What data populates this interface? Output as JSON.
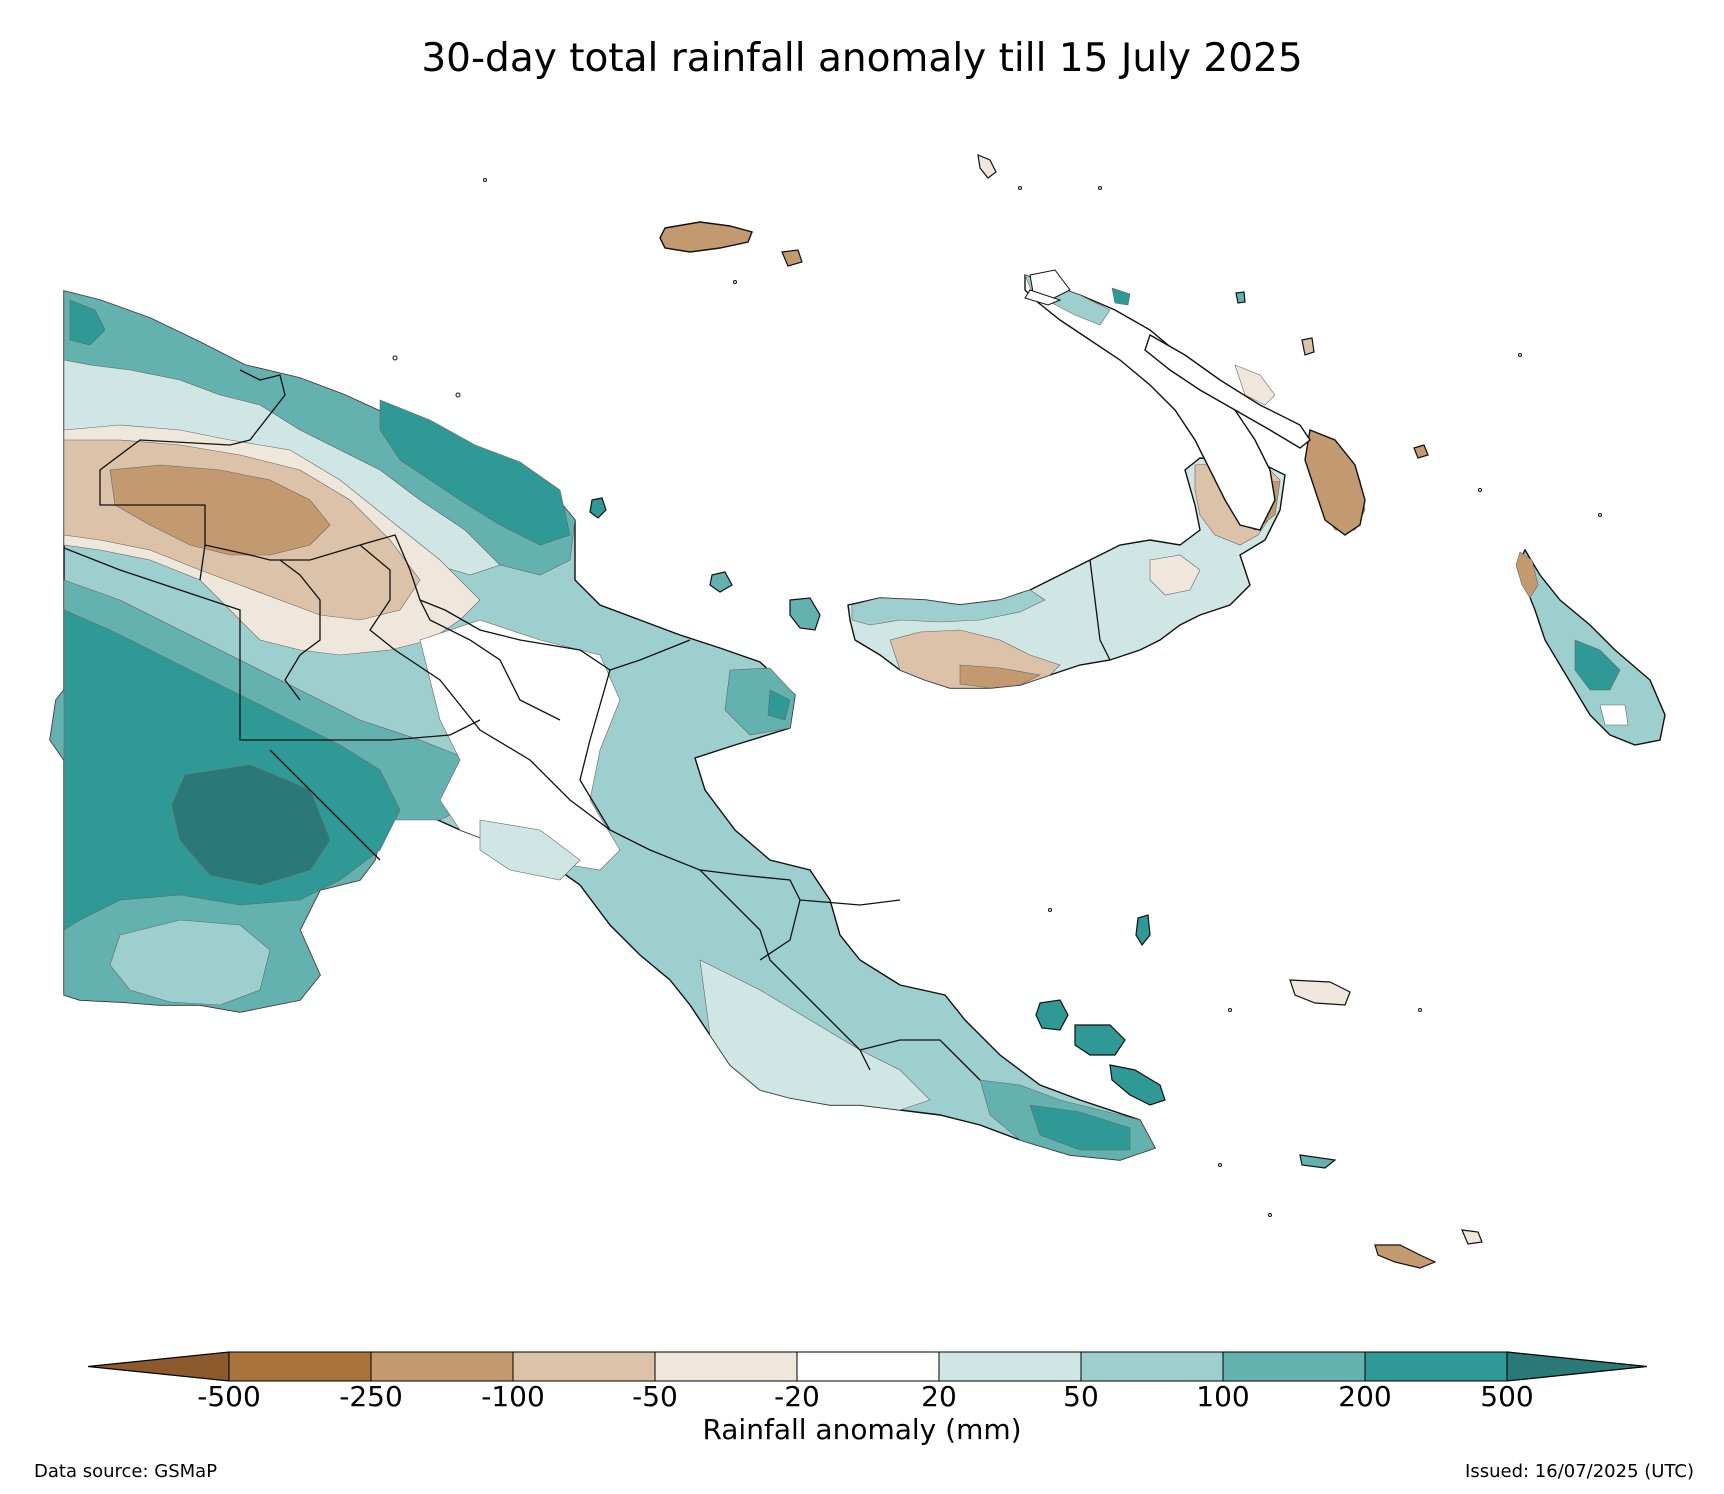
{
  "title": "30-day total rainfall anomaly till 15 July 2025",
  "colorbar": {
    "label": "Rainfall anomaly (mm)",
    "ticks": [
      "-500",
      "-250",
      "-100",
      "-50",
      "-20",
      "20",
      "50",
      "100",
      "200",
      "500"
    ],
    "under_color": "#8c5a2c",
    "over_color": "#2a7877",
    "colors": [
      "#a8743c",
      "#c39a70",
      "#dcc2a8",
      "#efe6dc",
      "#ffffff",
      "#cfe6e5",
      "#9ecfcf",
      "#64b2b0",
      "#2f9996"
    ]
  },
  "footer": {
    "source": "Data source: GSMaP",
    "issued": "Issued: 16/07/2025 (UTC)"
  }
}
